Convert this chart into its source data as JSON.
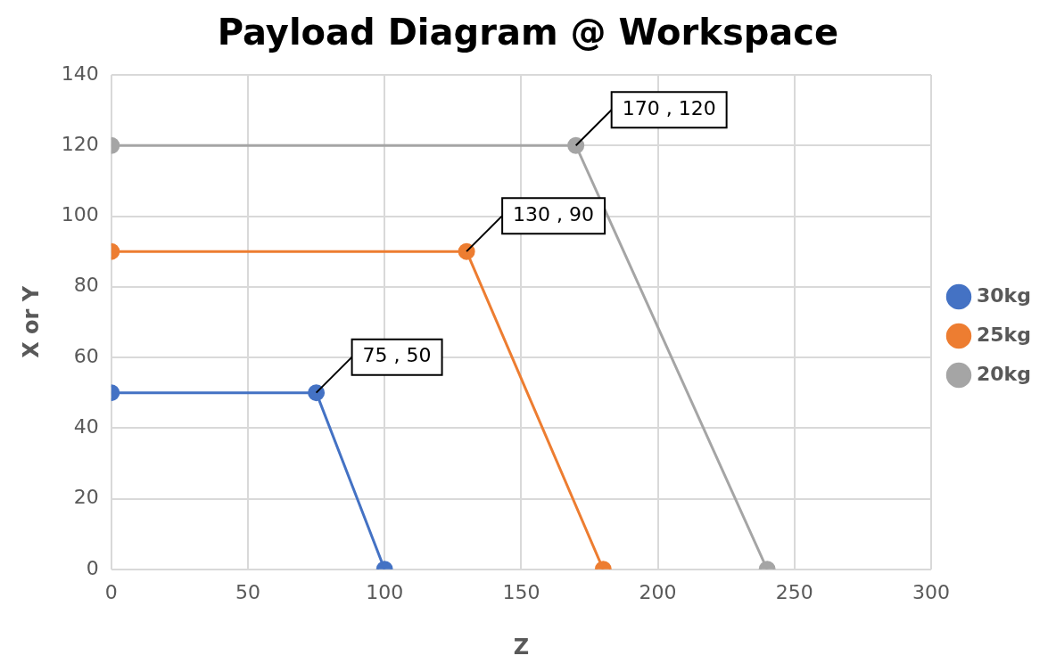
{
  "chart_data": {
    "type": "line",
    "title": "Payload Diagram @ Workspace",
    "xlabel": "Z",
    "ylabel": "X or Y",
    "series": [
      {
        "name": "30kg",
        "color": "#4472c4",
        "x": [
          0,
          75,
          100
        ],
        "values": [
          50,
          50,
          0
        ]
      },
      {
        "name": "25kg",
        "color": "#ed7d31",
        "x": [
          0,
          130,
          180
        ],
        "values": [
          90,
          90,
          0
        ]
      },
      {
        "name": "20kg",
        "color": "#a5a5a5",
        "x": [
          0,
          170,
          240
        ],
        "values": [
          120,
          120,
          0
        ]
      }
    ],
    "xlim": [
      0,
      300
    ],
    "xticks": [
      0,
      50,
      100,
      150,
      200,
      250,
      300
    ],
    "ylim": [
      0,
      140
    ],
    "yticks": [
      0,
      20,
      40,
      60,
      80,
      100,
      120,
      140
    ],
    "grid": true,
    "legend": "right",
    "marker": "circle",
    "line_style": "solid",
    "annotations": [
      {
        "text": "75 , 50",
        "x": 75,
        "y": 50
      },
      {
        "text": "130 , 90",
        "x": 130,
        "y": 90
      },
      {
        "text": "170 , 120",
        "x": 170,
        "y": 120
      }
    ]
  }
}
